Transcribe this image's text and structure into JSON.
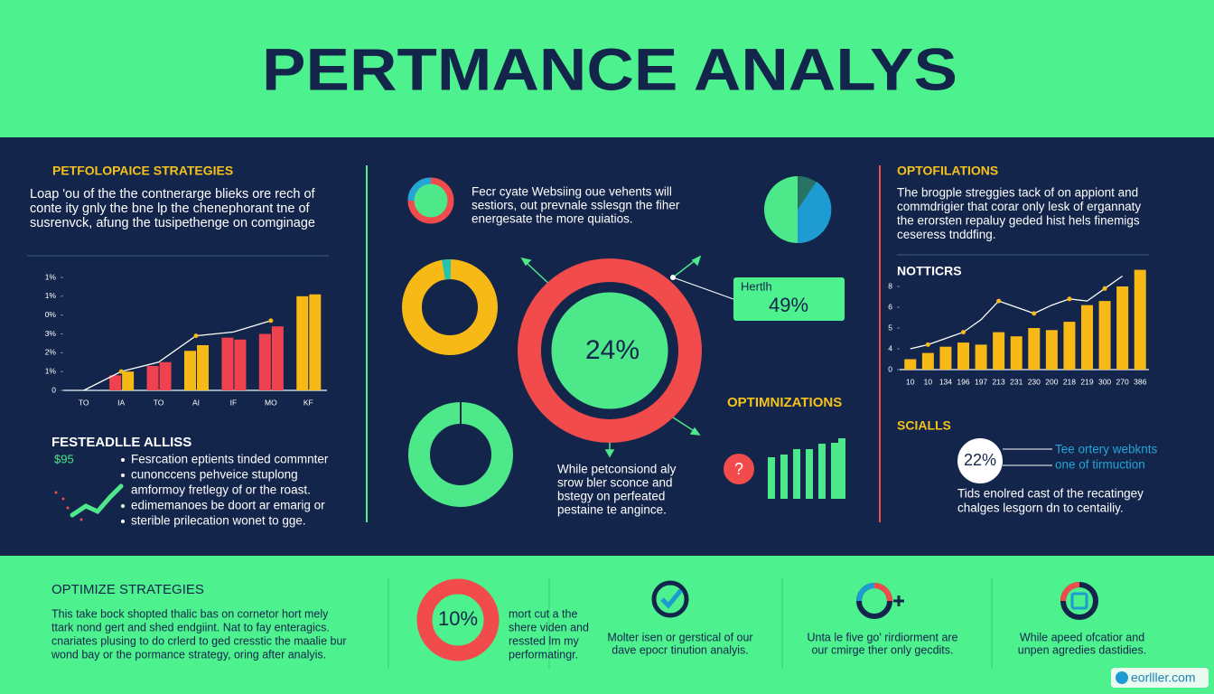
{
  "header": {
    "title": "PERTMANCE ANALYS"
  },
  "left": {
    "heading": "PETFOLOPAICE STRATEGIES",
    "paragraph": [
      "Loap 'ou of the the contnerarge blieks ore rech of",
      "conte ity gnly the bne lp the chenephorant tne of",
      "susrenvck, afung the tusipethenge on comginage"
    ],
    "chart": {
      "ylim": [
        0,
        6
      ],
      "yticks": [
        0,
        {
          "value": 1,
          "label": "1%"
        },
        {
          "value": 2,
          "label": "2%"
        },
        {
          "value": 3,
          "label": "3%"
        },
        {
          "value": 4,
          "label": "0%"
        },
        {
          "value": 5,
          "label": "1%"
        },
        {
          "value": 6,
          "label": "1%"
        }
      ],
      "categories": [
        "TO",
        "IA",
        "TO",
        "AI",
        "IF",
        "MO",
        "KF"
      ],
      "series": [
        {
          "colors": [
            null,
            "#f0424e",
            "#f0424e",
            "#f7b916",
            "#f0424e",
            "#f0424e",
            "#f7b916"
          ],
          "values": [
            null,
            0.8,
            1.3,
            2.1,
            2.8,
            3.0,
            5.0
          ]
        },
        {
          "colors": [
            null,
            "#f7b916",
            "#f0424e",
            "#f7b916",
            "#f0424e",
            "#f0424e",
            "#f7b916"
          ],
          "values": [
            null,
            1.0,
            1.5,
            2.4,
            2.7,
            3.4,
            5.1
          ]
        }
      ],
      "line": {
        "color": "#ffffff",
        "values": [
          0,
          1.0,
          1.5,
          2.9,
          3.1,
          3.7,
          null
        ]
      }
    },
    "list_heading": "FESTEADLLE ALLISS",
    "figure": "$95",
    "bullets": [
      "Fesrcation eptients tinded commnter",
      "cunonccens pehveice stuplong",
      "amformoy fretlegy of or the roast.",
      "edimemanoes be doort ar emarig or",
      "sterible prilecation wonet to gge."
    ]
  },
  "center": {
    "top_text": [
      "Fecr cyate Websiing oue vehents will",
      "sestiors, out prevnale sslesgn the fiher",
      "energesate the more quiatios."
    ],
    "ring_value": "24%",
    "health_label": "Hertlh",
    "health_value": "49%",
    "opt_heading": "OPTIMNIZATIONS",
    "question": "?",
    "bottom_text": [
      "While petconsiond aly",
      "srow bler sconce and",
      "bstegy on perfeated",
      "pestaine te angince."
    ]
  },
  "right": {
    "heading": "OPTOFILATIONS",
    "paragraph": [
      "The brogple streggies tack of on appiont and",
      "commdrigier that corar only lesk of ergannaty",
      "the erorsten repaluy geded hist hels finemigs",
      "ceseress tnddfing."
    ],
    "chart_heading": "NOTTICRS",
    "chart": {
      "ylim": [
        0,
        5
      ],
      "yticks": [
        0,
        {
          "value": 1,
          "label": "4"
        },
        {
          "value": 2,
          "label": "5"
        },
        {
          "value": 3,
          "label": "6"
        },
        {
          "value": 4,
          "label": "8"
        }
      ],
      "categories": [
        "10",
        "10",
        "134",
        "196",
        "197",
        "213",
        "231",
        "230",
        "200",
        "218",
        "219",
        "300",
        "270",
        "386"
      ],
      "color": "#f7b916",
      "values": [
        0.5,
        0.8,
        1.1,
        1.3,
        1.2,
        1.8,
        1.6,
        2.0,
        1.9,
        2.3,
        3.1,
        3.3,
        4.0,
        4.8
      ],
      "line": {
        "color": "#ffffff",
        "values": [
          1.0,
          1.2,
          1.5,
          1.8,
          2.4,
          3.3,
          3.0,
          2.7,
          3.1,
          3.4,
          3.3,
          3.9,
          4.5,
          null
        ]
      }
    },
    "scale_heading": "SCIALLS",
    "scale_value": "22%",
    "scale_notes": [
      "Tee ortery webknts",
      "one of tirmuction"
    ],
    "scale_text": [
      "Tids enolred cast of the recatingey",
      "chalges lesgorn dn to centailiy."
    ]
  },
  "bottom": {
    "heading": "OPTIMIZE STRATEGIES",
    "paragraph": [
      "This take bock shopted thalic bas on cornetor hort mely",
      "ttark nond gert and shed endgiint. Nat to fay enteragics.",
      "cnariates plusing to do crlerd to ged cresstic the maalie bur",
      "wond bay or the pormance strategy, oring after analyis."
    ],
    "ring_value": "10%",
    "ring_text": [
      "mort cut a the",
      "shere viden and",
      "ressted lm my",
      "performatingr."
    ],
    "captions": [
      [
        "Molter isen or gerstical of our",
        "dave epocr tinution analyis."
      ],
      [
        "Unta le five go' rirdiorment are",
        "our cmirge ther only gecdits."
      ],
      [
        "While apeed ofcatior and",
        "unpen agredies dastidies."
      ]
    ],
    "watermark": "eorlller.com"
  }
}
